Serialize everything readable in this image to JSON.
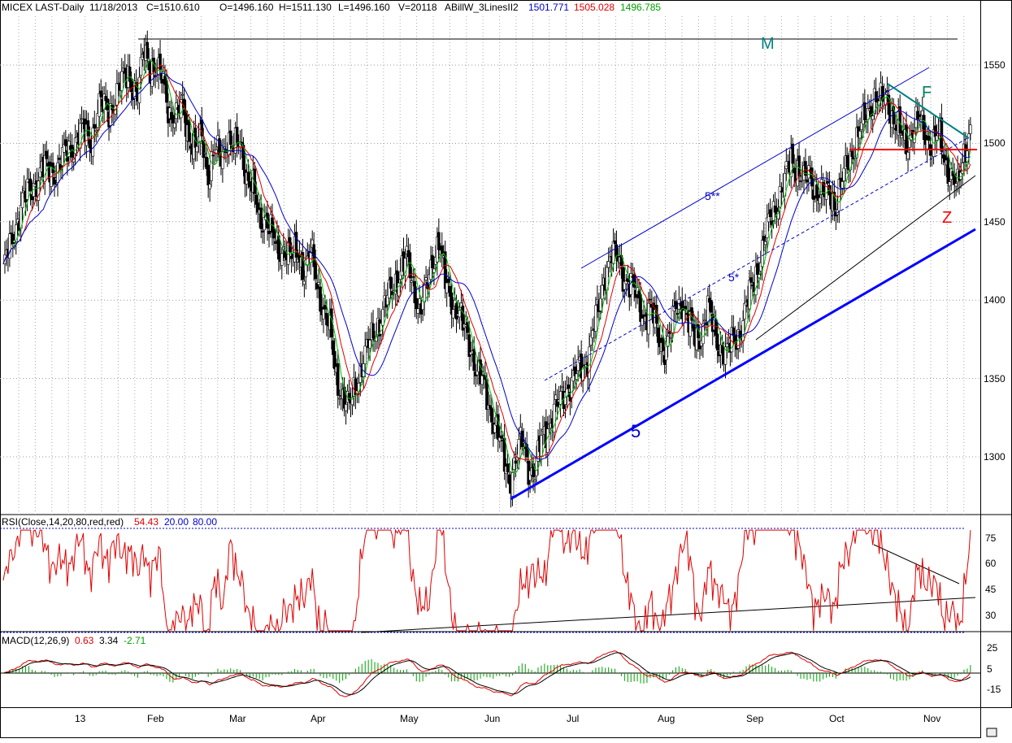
{
  "chart_data": {
    "type": "candlestick",
    "header": {
      "symbol": "MICEX LAST-Daily",
      "date": "11/18/2013",
      "close": "C=1510.610",
      "open": "O=1496.160",
      "high": "H=1511.130",
      "low": "L=1496.160",
      "volume": "V=20118",
      "indicator_name": "ABillW_3LinesII2",
      "ind1": "1501.771",
      "ind2": "1505.028",
      "ind3": "1496.785"
    },
    "price_axis": {
      "min": 1260,
      "max": 1580,
      "ticks": [
        1300,
        1350,
        1400,
        1450,
        1500,
        1550
      ]
    },
    "time_labels": [
      "13",
      "Feb",
      "Mar",
      "Apr",
      "May",
      "Jun",
      "Jul",
      "Aug",
      "Sep",
      "Oct",
      "Nov"
    ],
    "annotations": {
      "top_label": "M",
      "wedge_label": "F",
      "z_label": "Z",
      "channel_upper": "5**",
      "channel_mid": "5*",
      "trend_label": "5"
    },
    "price_path": [
      [
        0,
        1420
      ],
      [
        6,
        1440
      ],
      [
        12,
        1465
      ],
      [
        18,
        1470
      ],
      [
        24,
        1485
      ],
      [
        30,
        1480
      ],
      [
        36,
        1490
      ],
      [
        42,
        1495
      ],
      [
        48,
        1510
      ],
      [
        54,
        1500
      ],
      [
        60,
        1525
      ],
      [
        66,
        1520
      ],
      [
        72,
        1535
      ],
      [
        78,
        1545
      ],
      [
        84,
        1530
      ],
      [
        88,
        1560
      ],
      [
        92,
        1550
      ],
      [
        96,
        1545
      ],
      [
        100,
        1540
      ],
      [
        104,
        1520
      ],
      [
        108,
        1515
      ],
      [
        112,
        1525
      ],
      [
        116,
        1505
      ],
      [
        120,
        1495
      ],
      [
        124,
        1505
      ],
      [
        128,
        1480
      ],
      [
        132,
        1495
      ],
      [
        136,
        1490
      ],
      [
        140,
        1505
      ],
      [
        144,
        1495
      ],
      [
        148,
        1500
      ],
      [
        152,
        1480
      ],
      [
        156,
        1470
      ],
      [
        160,
        1450
      ],
      [
        164,
        1455
      ],
      [
        168,
        1440
      ],
      [
        172,
        1430
      ],
      [
        176,
        1435
      ],
      [
        180,
        1425
      ],
      [
        184,
        1430
      ],
      [
        188,
        1420
      ],
      [
        192,
        1430
      ],
      [
        196,
        1410
      ],
      [
        200,
        1395
      ],
      [
        204,
        1380
      ],
      [
        208,
        1350
      ],
      [
        212,
        1340
      ],
      [
        216,
        1330
      ],
      [
        220,
        1345
      ],
      [
        224,
        1360
      ],
      [
        228,
        1370
      ],
      [
        232,
        1380
      ],
      [
        236,
        1390
      ],
      [
        240,
        1400
      ],
      [
        244,
        1410
      ],
      [
        248,
        1420
      ],
      [
        252,
        1425
      ],
      [
        256,
        1410
      ],
      [
        260,
        1395
      ],
      [
        264,
        1405
      ],
      [
        268,
        1425
      ],
      [
        272,
        1440
      ],
      [
        276,
        1410
      ],
      [
        280,
        1400
      ],
      [
        284,
        1395
      ],
      [
        288,
        1380
      ],
      [
        292,
        1370
      ],
      [
        296,
        1355
      ],
      [
        300,
        1345
      ],
      [
        304,
        1330
      ],
      [
        308,
        1320
      ],
      [
        312,
        1300
      ],
      [
        316,
        1285
      ],
      [
        320,
        1300
      ],
      [
        324,
        1310
      ],
      [
        328,
        1295
      ],
      [
        332,
        1290
      ],
      [
        336,
        1310
      ],
      [
        340,
        1320
      ],
      [
        344,
        1330
      ],
      [
        348,
        1335
      ],
      [
        352,
        1345
      ],
      [
        356,
        1350
      ],
      [
        360,
        1355
      ],
      [
        364,
        1360
      ],
      [
        368,
        1380
      ],
      [
        372,
        1395
      ],
      [
        376,
        1420
      ],
      [
        380,
        1430
      ],
      [
        384,
        1425
      ],
      [
        388,
        1415
      ],
      [
        392,
        1410
      ],
      [
        396,
        1400
      ],
      [
        400,
        1390
      ],
      [
        404,
        1395
      ],
      [
        408,
        1380
      ],
      [
        412,
        1370
      ],
      [
        416,
        1375
      ],
      [
        420,
        1395
      ],
      [
        424,
        1400
      ],
      [
        428,
        1385
      ],
      [
        432,
        1375
      ],
      [
        436,
        1380
      ],
      [
        440,
        1395
      ],
      [
        444,
        1380
      ],
      [
        448,
        1370
      ],
      [
        452,
        1365
      ],
      [
        456,
        1375
      ],
      [
        460,
        1380
      ],
      [
        464,
        1395
      ],
      [
        468,
        1410
      ],
      [
        472,
        1425
      ],
      [
        476,
        1440
      ],
      [
        480,
        1455
      ],
      [
        484,
        1465
      ],
      [
        488,
        1475
      ],
      [
        492,
        1490
      ],
      [
        496,
        1485
      ],
      [
        500,
        1475
      ],
      [
        504,
        1480
      ],
      [
        508,
        1470
      ],
      [
        512,
        1465
      ],
      [
        516,
        1470
      ],
      [
        520,
        1460
      ],
      [
        524,
        1475
      ],
      [
        528,
        1490
      ],
      [
        532,
        1500
      ],
      [
        536,
        1510
      ],
      [
        540,
        1520
      ],
      [
        544,
        1530
      ],
      [
        548,
        1525
      ],
      [
        552,
        1530
      ],
      [
        556,
        1515
      ],
      [
        560,
        1505
      ],
      [
        564,
        1500
      ],
      [
        568,
        1510
      ],
      [
        572,
        1515
      ],
      [
        576,
        1505
      ],
      [
        580,
        1500
      ],
      [
        584,
        1505
      ],
      [
        588,
        1490
      ],
      [
        592,
        1480
      ],
      [
        596,
        1470
      ],
      [
        600,
        1495
      ],
      [
        604,
        1510
      ]
    ],
    "rsi": {
      "label": "RSI(Close,14,20,80,red,red)",
      "value": "54.43",
      "low": "20.00",
      "high": "80.00",
      "ticks": [
        75,
        60,
        45,
        30
      ]
    },
    "macd": {
      "label": "MACD(12,26,9)",
      "macd": "0.63",
      "signal": "3.34",
      "hist": "-2.71",
      "ticks": [
        25,
        5,
        -15
      ]
    },
    "colors": {
      "up": "#000000",
      "down": "#000000",
      "ma_fast": "#00c000",
      "ma_mid": "#e00000",
      "ma_slow": "#0000d0",
      "trend_blue": "#0000ff",
      "wedge_teal": "#008080",
      "support_red": "#ff0000",
      "rsi_line": "#e00000",
      "macd_line": "#000000",
      "signal_line": "#e00000",
      "hist": "#00a000"
    }
  }
}
